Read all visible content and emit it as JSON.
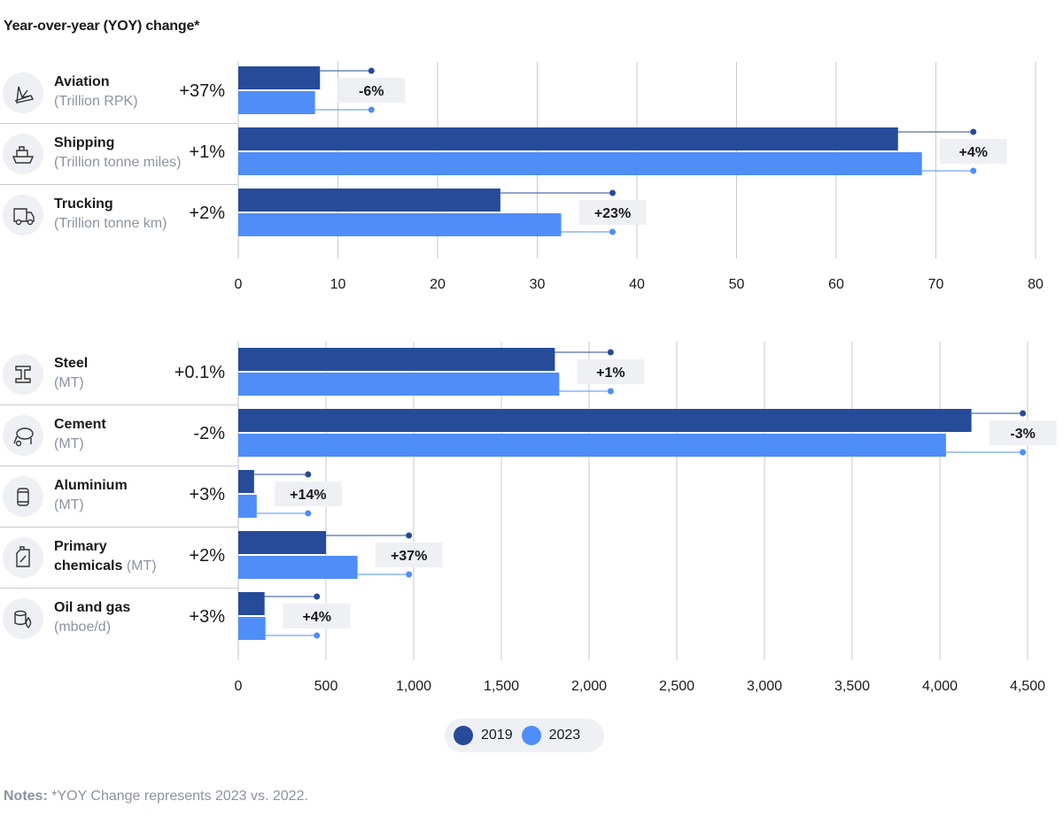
{
  "title": "Year-over-year (YOY) change*",
  "colors": {
    "series_2019": "#264b98",
    "series_2023": "#4f8df9",
    "grid": "#c7cad1",
    "label_bg": "#eef0f4"
  },
  "chart_data": [
    {
      "type": "bar",
      "orientation": "horizontal",
      "categories": [
        "Aviation",
        "Shipping",
        "Trucking"
      ],
      "units": [
        "(Trillion RPK)",
        "(Trillion tonne miles)",
        "(Trillion tonne km)"
      ],
      "icons": [
        "airplane-icon",
        "ship-icon",
        "truck-icon"
      ],
      "yoy_change": [
        "+37%",
        "+1%",
        "+2%"
      ],
      "change_2019_vs_2023": [
        "-6%",
        "+4%",
        "+23%"
      ],
      "series": [
        {
          "name": "2019",
          "values": [
            8.2,
            66.2,
            26.3
          ]
        },
        {
          "name": "2023",
          "values": [
            7.7,
            68.6,
            32.4
          ]
        }
      ],
      "xlim": [
        0,
        80
      ],
      "xticks": [
        "0",
        "10",
        "20",
        "30",
        "40",
        "50",
        "60",
        "70",
        "80"
      ],
      "xtick_values": [
        0,
        10,
        20,
        30,
        40,
        50,
        60,
        70,
        80
      ],
      "grid": true
    },
    {
      "type": "bar",
      "orientation": "horizontal",
      "categories": [
        "Steel",
        "Cement",
        "Aluminium",
        "Primary chemicals",
        "Oil and gas"
      ],
      "name_lines": [
        [
          "Steel"
        ],
        [
          "Cement"
        ],
        [
          "Aluminium"
        ],
        [
          "Primary",
          "chemicals"
        ],
        [
          "Oil and gas"
        ]
      ],
      "units": [
        "(MT)",
        "(MT)",
        "(MT)",
        "(MT)",
        "(mboe/d)"
      ],
      "icons": [
        "steel-beam-icon",
        "cement-mixer-icon",
        "aluminium-can-icon",
        "chemical-canister-icon",
        "oil-gas-icon"
      ],
      "yoy_change": [
        "+0.1%",
        "-2%",
        "+3%",
        "+2%",
        "+3%"
      ],
      "change_2019_vs_2023": [
        "+1%",
        "-3%",
        "+14%",
        "+37%",
        "+4%"
      ],
      "series": [
        {
          "name": "2019",
          "values": [
            1805,
            4180,
            90,
            500,
            150
          ]
        },
        {
          "name": "2023",
          "values": [
            1830,
            4035,
            105,
            680,
            155
          ]
        }
      ],
      "xlim": [
        0,
        4500
      ],
      "xticks": [
        "0",
        "500",
        "1,000",
        "1,500",
        "2,000",
        "2,500",
        "3,000",
        "3,500",
        "4,000",
        "4,500"
      ],
      "xtick_values": [
        0,
        500,
        1000,
        1500,
        2000,
        2500,
        3000,
        3500,
        4000,
        4500
      ],
      "grid": true
    }
  ],
  "legend": {
    "items": [
      {
        "label": "2019"
      },
      {
        "label": "2023"
      }
    ]
  },
  "notes": {
    "label": "Notes:",
    "text": "*YOY Change represents 2023 vs. 2022."
  }
}
